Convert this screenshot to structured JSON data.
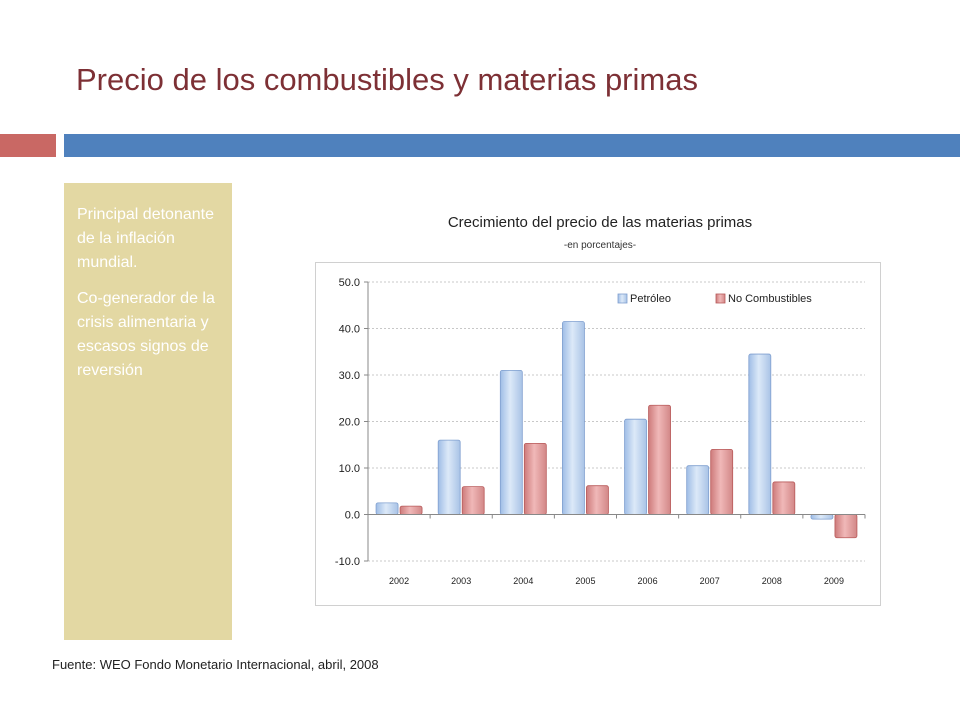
{
  "slide": {
    "title": "Precio de los combustibles y materias primas",
    "side_text": [
      "Principal detonante de la inflación mundial.",
      "Co-generador de la crisis alimentaria y escasos signos de reversión"
    ],
    "source": "Fuente: WEO Fondo Monetario Internacional, abril, 2008",
    "colors": {
      "title": "#7d3035",
      "accent_red": "#c96864",
      "accent_blue": "#4f81bd",
      "panel": "#e3d8a3"
    }
  },
  "chart_data": {
    "type": "bar",
    "title": "Crecimiento del precio de las materias primas",
    "subtitle": "-en porcentajes-",
    "categories": [
      "2002",
      "2003",
      "2004",
      "2005",
      "2006",
      "2007",
      "2008",
      "2009"
    ],
    "series": [
      {
        "name": "Petróleo",
        "values": [
          2.5,
          16.0,
          31.0,
          41.5,
          20.5,
          10.5,
          34.5,
          -1.0
        ],
        "color": "#c6d9f1"
      },
      {
        "name": "No Combustibles",
        "values": [
          1.8,
          6.0,
          15.3,
          6.2,
          23.5,
          14.0,
          7.0,
          -5.0
        ],
        "color": "#e6a5a5"
      }
    ],
    "yticks": [
      "50.0",
      "40.0",
      "30.0",
      "20.0",
      "10.0",
      "0.0",
      "-10.0"
    ],
    "ylim": [
      -10,
      50
    ],
    "grid": true,
    "legend_position": "top-right"
  }
}
